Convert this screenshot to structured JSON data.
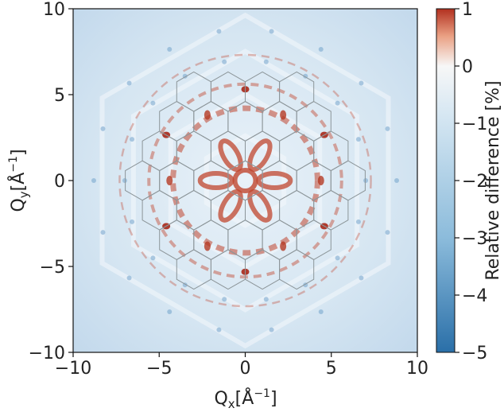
{
  "chart_data": {
    "type": "heatmap",
    "xlabel": "Q",
    "xlabel_sub": "x",
    "xlabel_unit": "[Å",
    "xlabel_unit_sup": "−1",
    "xlabel_close": "]",
    "ylabel": "Q",
    "ylabel_sub": "y",
    "ylabel_unit": "[Å",
    "ylabel_unit_sup": "−1",
    "ylabel_close": "]",
    "xlim": [
      -10,
      10
    ],
    "ylim": [
      -10,
      10
    ],
    "x_ticks": [
      -10,
      -5,
      0,
      5,
      10
    ],
    "y_ticks": [
      -10,
      -5,
      0,
      5,
      10
    ],
    "x_tick_labels": [
      "−10",
      "−5",
      "0",
      "5",
      "10"
    ],
    "y_tick_labels": [
      "−10",
      "−5",
      "0",
      "5",
      "10"
    ],
    "colorbar": {
      "label": "Relative difference [%]",
      "min": -5,
      "max": 1,
      "ticks": [
        1,
        0,
        -1,
        -2,
        -3,
        -4,
        -5
      ],
      "tick_labels": [
        "1",
        "0",
        "−1",
        "−2",
        "−3",
        "−4",
        "−5"
      ],
      "colors": {
        "positive": "#b2301f",
        "zero": "#f7f7f7",
        "negative": "#2a6fa8"
      }
    },
    "hex_grid": {
      "hexagon_circumradius": 1.15,
      "rings": 3,
      "stroke_color": "#8c9599"
    },
    "grid": false
  }
}
